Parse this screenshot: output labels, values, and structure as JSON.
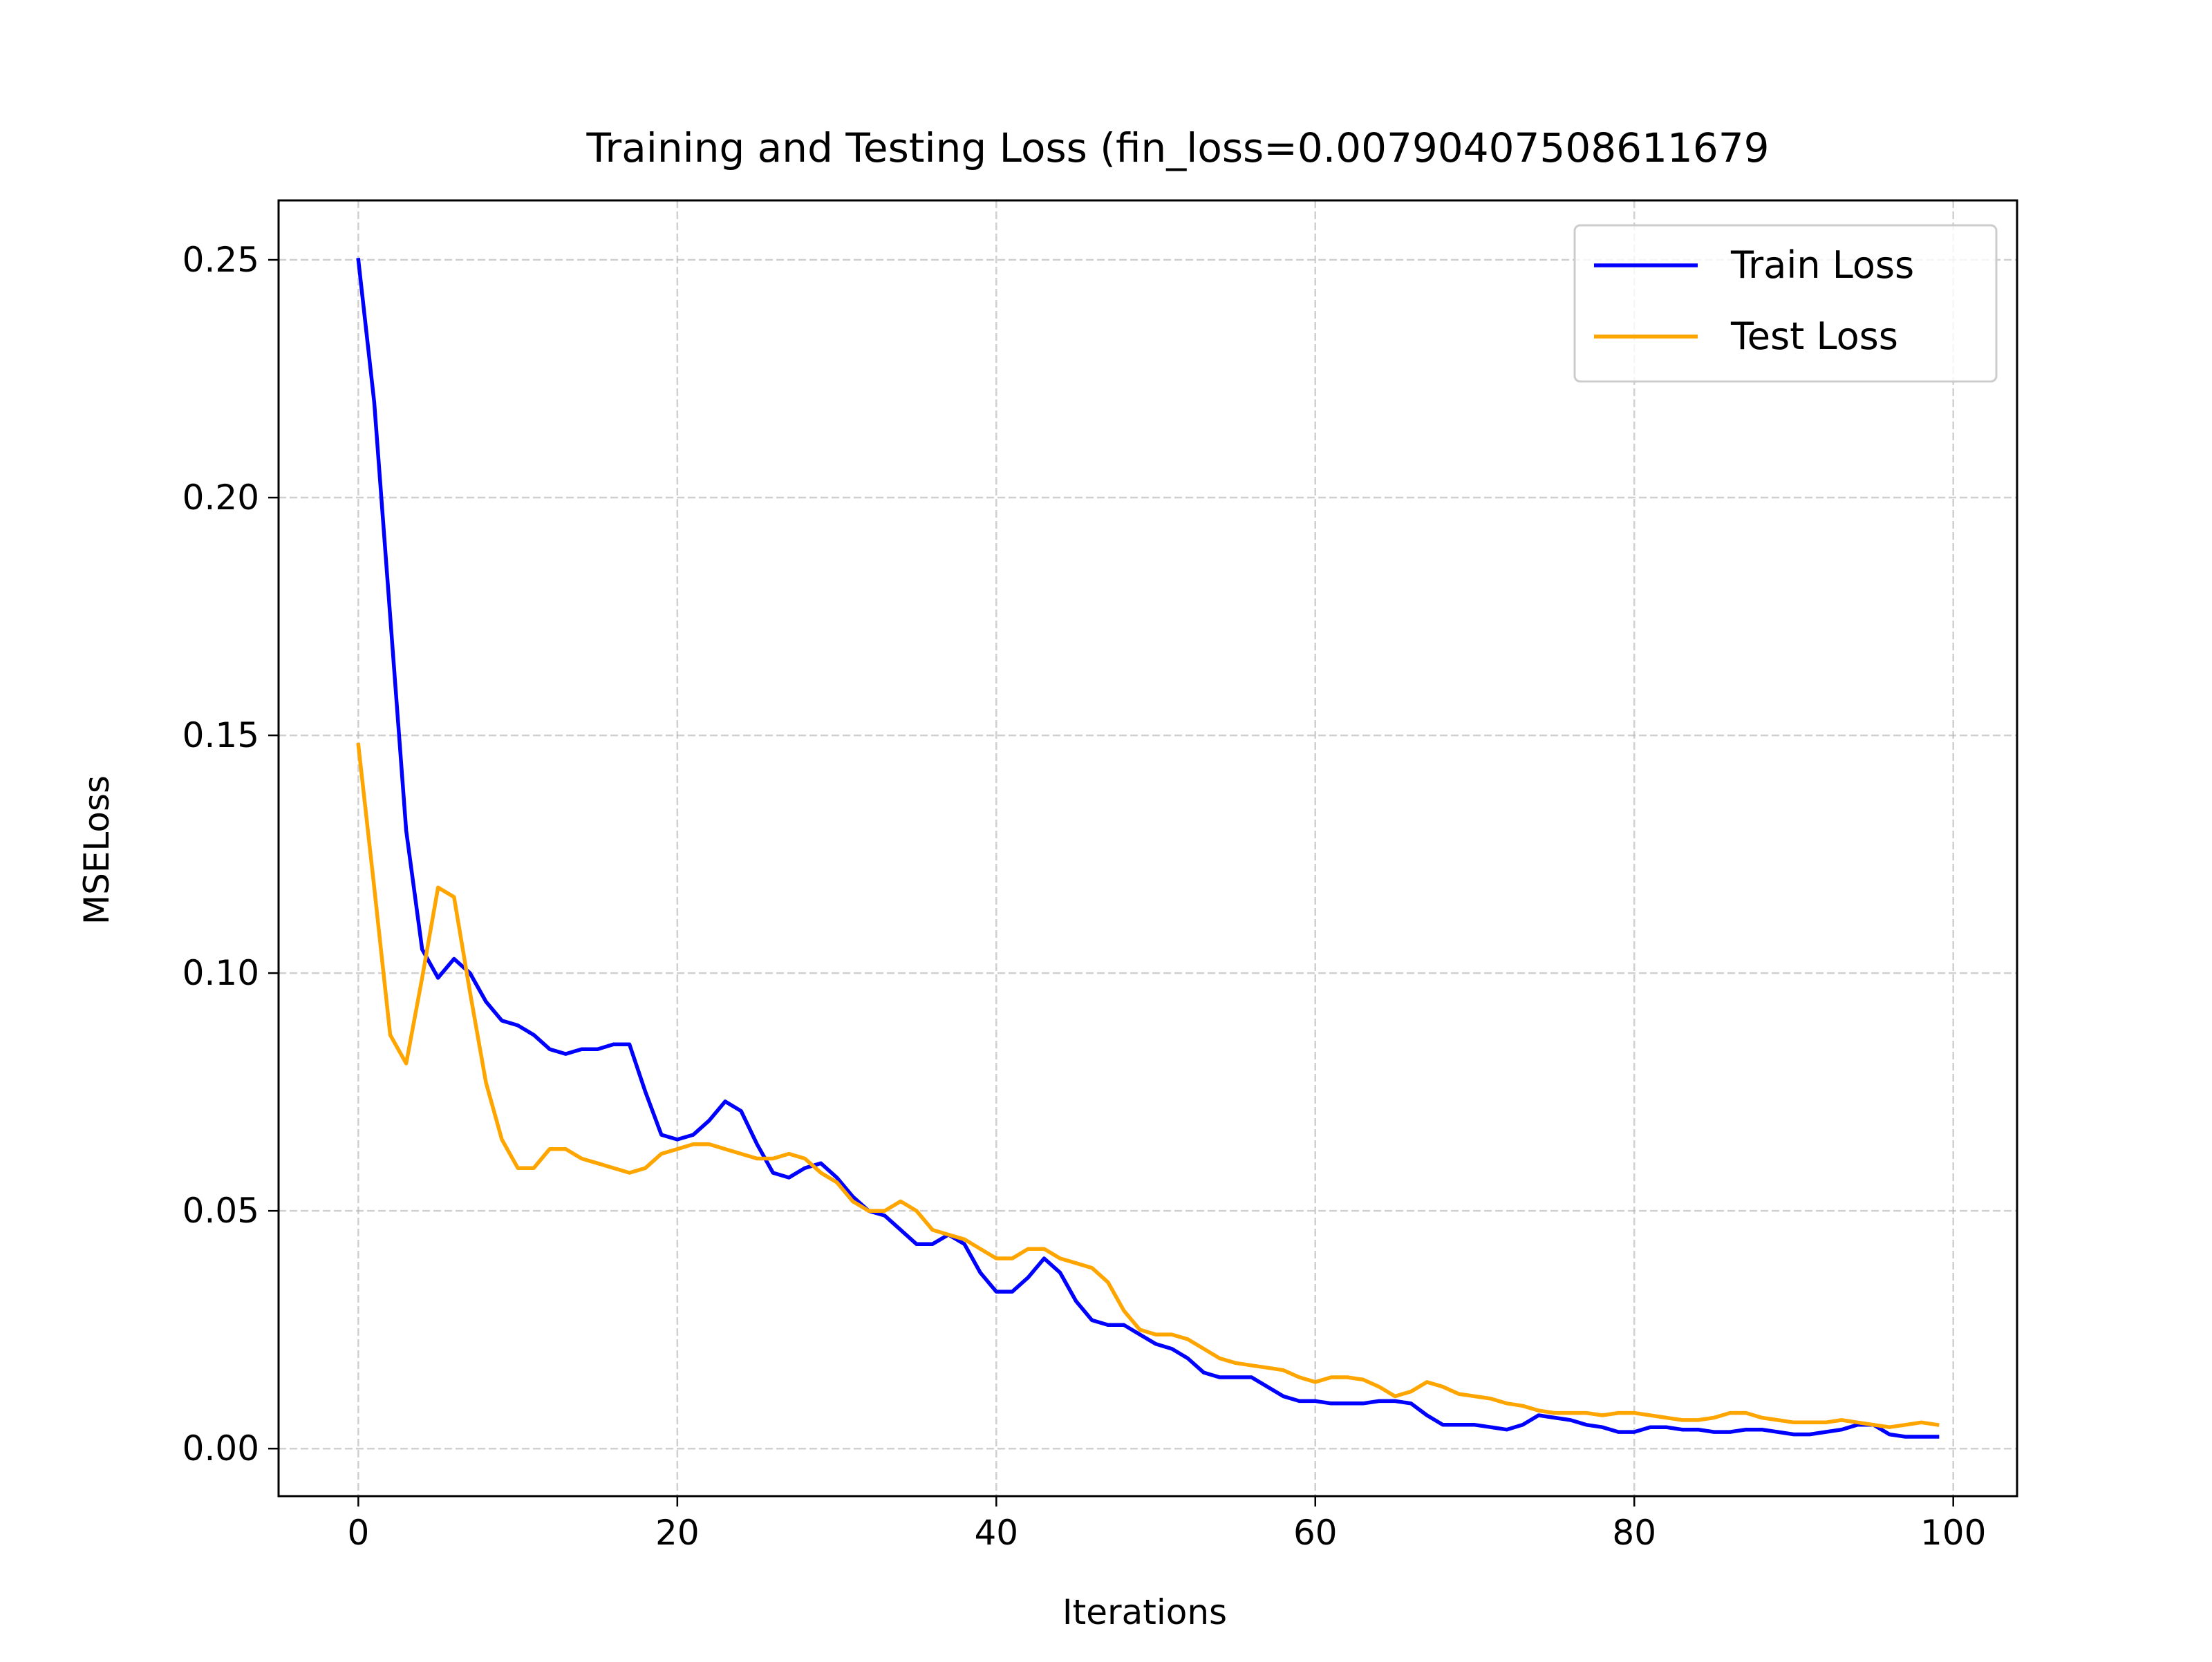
{
  "chart_data": {
    "type": "line",
    "title": "Training and Testing Loss  (fin_loss=0.00790407508611679",
    "xlabel": "Iterations",
    "ylabel": "MSELoss",
    "xlim": [
      -5,
      104
    ],
    "ylim": [
      -0.01,
      0.2625
    ],
    "xticks": [
      0,
      20,
      40,
      60,
      80,
      100
    ],
    "xtick_labels": [
      "0",
      "20",
      "40",
      "60",
      "80",
      "100"
    ],
    "yticks": [
      0.0,
      0.05,
      0.1,
      0.15,
      0.2,
      0.25
    ],
    "ytick_labels": [
      "0.00",
      "0.05",
      "0.10",
      "0.15",
      "0.20",
      "0.25"
    ],
    "grid": true,
    "legend_position": "top-right",
    "x": [
      0,
      1,
      2,
      3,
      4,
      5,
      6,
      7,
      8,
      9,
      10,
      11,
      12,
      13,
      14,
      15,
      16,
      17,
      18,
      19,
      20,
      21,
      22,
      23,
      24,
      25,
      26,
      27,
      28,
      29,
      30,
      31,
      32,
      33,
      34,
      35,
      36,
      37,
      38,
      39,
      40,
      41,
      42,
      43,
      44,
      45,
      46,
      47,
      48,
      49,
      50,
      51,
      52,
      53,
      54,
      55,
      56,
      57,
      58,
      59,
      60,
      61,
      62,
      63,
      64,
      65,
      66,
      67,
      68,
      69,
      70,
      71,
      72,
      73,
      74,
      75,
      76,
      77,
      78,
      79,
      80,
      81,
      82,
      83,
      84,
      85,
      86,
      87,
      88,
      89,
      90,
      91,
      92,
      93,
      94,
      95,
      96,
      97,
      98,
      99
    ],
    "series": [
      {
        "name": "Train Loss",
        "color": "#0000ff",
        "values": [
          0.25,
          0.22,
          0.175,
          0.13,
          0.105,
          0.099,
          0.103,
          0.1,
          0.094,
          0.09,
          0.089,
          0.087,
          0.084,
          0.083,
          0.084,
          0.084,
          0.085,
          0.085,
          0.075,
          0.066,
          0.065,
          0.066,
          0.069,
          0.073,
          0.071,
          0.064,
          0.058,
          0.057,
          0.059,
          0.06,
          0.057,
          0.053,
          0.05,
          0.049,
          0.046,
          0.043,
          0.043,
          0.045,
          0.043,
          0.037,
          0.033,
          0.033,
          0.036,
          0.04,
          0.037,
          0.031,
          0.027,
          0.026,
          0.026,
          0.024,
          0.022,
          0.021,
          0.019,
          0.016,
          0.015,
          0.015,
          0.015,
          0.013,
          0.011,
          0.01,
          0.01,
          0.0095,
          0.0095,
          0.0095,
          0.01,
          0.01,
          0.0095,
          0.007,
          0.005,
          0.005,
          0.005,
          0.0045,
          0.004,
          0.005,
          0.007,
          0.0065,
          0.006,
          0.005,
          0.0045,
          0.0035,
          0.0035,
          0.0045,
          0.0045,
          0.004,
          0.004,
          0.0035,
          0.0035,
          0.004,
          0.004,
          0.0035,
          0.003,
          0.003,
          0.0035,
          0.004,
          0.005,
          0.005,
          0.003,
          0.0025,
          0.0025,
          0.0025
        ]
      },
      {
        "name": "Test Loss",
        "color": "#ffa500",
        "values": [
          0.148,
          0.118,
          0.087,
          0.081,
          0.099,
          0.118,
          0.116,
          0.096,
          0.077,
          0.065,
          0.059,
          0.059,
          0.063,
          0.063,
          0.061,
          0.06,
          0.059,
          0.058,
          0.059,
          0.062,
          0.063,
          0.064,
          0.064,
          0.063,
          0.062,
          0.061,
          0.061,
          0.062,
          0.061,
          0.058,
          0.056,
          0.052,
          0.05,
          0.05,
          0.052,
          0.05,
          0.046,
          0.045,
          0.044,
          0.042,
          0.04,
          0.04,
          0.042,
          0.042,
          0.04,
          0.039,
          0.038,
          0.035,
          0.029,
          0.025,
          0.024,
          0.024,
          0.023,
          0.021,
          0.019,
          0.018,
          0.0175,
          0.017,
          0.0165,
          0.015,
          0.014,
          0.015,
          0.015,
          0.0145,
          0.013,
          0.011,
          0.012,
          0.014,
          0.013,
          0.0115,
          0.011,
          0.0105,
          0.0095,
          0.009,
          0.008,
          0.0075,
          0.0075,
          0.0075,
          0.007,
          0.0075,
          0.0075,
          0.007,
          0.0065,
          0.006,
          0.006,
          0.0065,
          0.0075,
          0.0075,
          0.0065,
          0.006,
          0.0055,
          0.0055,
          0.0055,
          0.006,
          0.0055,
          0.005,
          0.0045,
          0.005,
          0.0055,
          0.005
        ]
      }
    ]
  }
}
